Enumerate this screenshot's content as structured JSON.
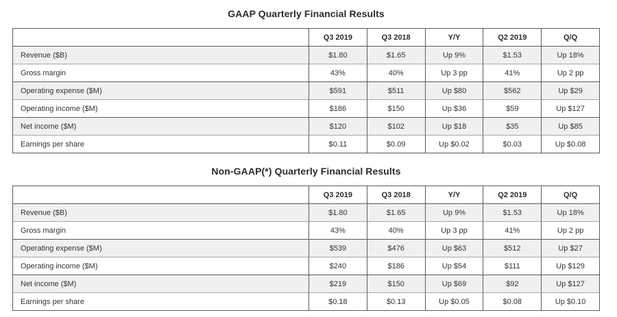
{
  "colors": {
    "page_bg": "#ffffff",
    "text": "#333333",
    "title_text": "#2b2b2b",
    "border_dark": "#5a5a5a",
    "border_light": "#a6a6a6",
    "stripe_bg": "#f0f0f0"
  },
  "tables": [
    {
      "title": "GAAP Quarterly Financial Results",
      "columns": [
        "",
        "Q3 2019",
        "Q3 2018",
        "Y/Y",
        "Q2 2019",
        "Q/Q"
      ],
      "rows": [
        {
          "label": "Revenue ($B)",
          "values": [
            "$1.80",
            "$1.65",
            "Up 9%",
            "$1.53",
            "Up 18%"
          ]
        },
        {
          "label": "Gross margin",
          "values": [
            "43%",
            "40%",
            "Up 3 pp",
            "41%",
            "Up 2 pp"
          ]
        },
        {
          "label": "Operating expense ($M)",
          "values": [
            "$591",
            "$511",
            "Up $80",
            "$562",
            "Up $29"
          ]
        },
        {
          "label": "Operating income ($M)",
          "values": [
            "$186",
            "$150",
            "Up $36",
            "$59",
            "Up $127"
          ]
        },
        {
          "label": "Net income ($M)",
          "values": [
            "$120",
            "$102",
            "Up $18",
            "$35",
            "Up $85"
          ]
        },
        {
          "label": "Earnings per share",
          "values": [
            "$0.11",
            "$0.09",
            "Up $0.02",
            "$0.03",
            "Up $0.08"
          ]
        }
      ]
    },
    {
      "title": "Non-GAAP(*) Quarterly Financial Results",
      "columns": [
        "",
        "Q3 2019",
        "Q3 2018",
        "Y/Y",
        "Q2 2019",
        "Q/Q"
      ],
      "rows": [
        {
          "label": "Revenue ($B)",
          "values": [
            "$1.80",
            "$1.65",
            "Up 9%",
            "$1.53",
            "Up 18%"
          ]
        },
        {
          "label": "Gross margin",
          "values": [
            "43%",
            "40%",
            "Up 3 pp",
            "41%",
            "Up 2 pp"
          ]
        },
        {
          "label": "Operating expense ($M)",
          "values": [
            "$539",
            "$476",
            "Up $63",
            "$512",
            "Up $27"
          ]
        },
        {
          "label": "Operating income ($M)",
          "values": [
            "$240",
            "$186",
            "Up $54",
            "$111",
            "Up $129"
          ]
        },
        {
          "label": "Net income ($M)",
          "values": [
            "$219",
            "$150",
            "Up $69",
            "$92",
            "Up $127"
          ]
        },
        {
          "label": "Earnings per share",
          "values": [
            "$0.18",
            "$0.13",
            "Up $0.05",
            "$0.08",
            "Up $0.10"
          ]
        }
      ]
    }
  ]
}
